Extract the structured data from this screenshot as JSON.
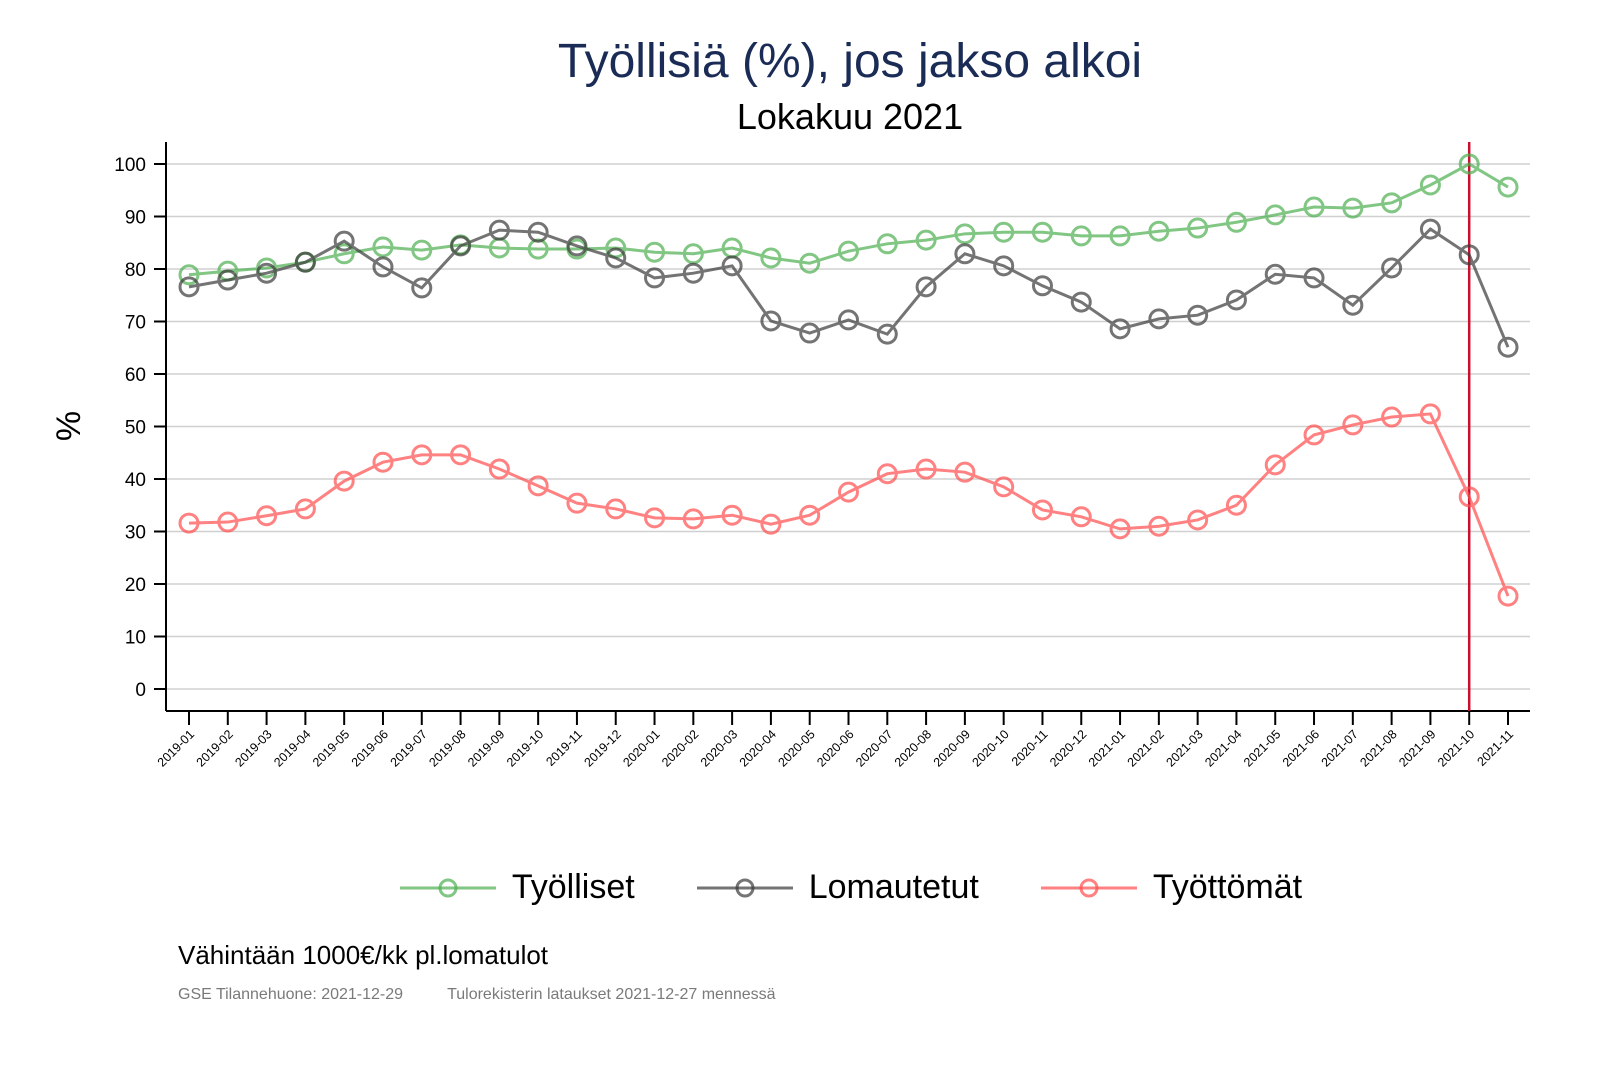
{
  "chart_data": {
    "type": "line",
    "title": "Työllisiä (%), jos jakso alkoi",
    "subtitle": "Lokakuu 2021",
    "xlabel": "",
    "ylabel": "%",
    "ylim": [
      -4,
      104
    ],
    "yticks": [
      0,
      10,
      20,
      30,
      40,
      50,
      60,
      70,
      80,
      90,
      100
    ],
    "grid": true,
    "legend_position": "bottom",
    "reference_line": {
      "x": "2021-10",
      "color": "#c8102e"
    },
    "categories": [
      "2019-01",
      "2019-02",
      "2019-03",
      "2019-04",
      "2019-05",
      "2019-06",
      "2019-07",
      "2019-08",
      "2019-09",
      "2019-10",
      "2019-11",
      "2019-12",
      "2020-01",
      "2020-02",
      "2020-03",
      "2020-04",
      "2020-05",
      "2020-06",
      "2020-07",
      "2020-08",
      "2020-09",
      "2020-10",
      "2020-11",
      "2020-12",
      "2021-01",
      "2021-02",
      "2021-03",
      "2021-04",
      "2021-05",
      "2021-06",
      "2021-07",
      "2021-08",
      "2021-09",
      "2021-10",
      "2021-11"
    ],
    "series": [
      {
        "name": "Työlliset",
        "color": "#4caf50",
        "values": [
          78.9,
          79.6,
          80.2,
          81.3,
          82.9,
          84.2,
          83.6,
          84.6,
          84.0,
          83.8,
          83.8,
          84.0,
          83.2,
          82.9,
          84.0,
          82.1,
          81.1,
          83.4,
          84.8,
          85.5,
          86.7,
          87.0,
          87.0,
          86.3,
          86.3,
          87.2,
          87.8,
          88.9,
          90.3,
          91.8,
          91.6,
          92.6,
          96.0,
          100.0,
          95.6
        ]
      },
      {
        "name": "Lomautetut",
        "color": "#3a3a3a",
        "values": [
          76.6,
          77.9,
          79.2,
          81.3,
          85.3,
          80.4,
          76.4,
          84.4,
          87.4,
          87.0,
          84.4,
          82.1,
          78.3,
          79.2,
          80.6,
          70.1,
          67.8,
          70.3,
          67.6,
          76.6,
          82.9,
          80.6,
          76.8,
          73.7,
          68.6,
          70.5,
          71.2,
          74.1,
          79.0,
          78.3,
          73.1,
          80.2,
          87.6,
          82.7,
          65.1
        ]
      },
      {
        "name": "Työttömät",
        "color": "#ff4d4d",
        "values": [
          31.6,
          31.8,
          33.0,
          34.3,
          39.6,
          43.2,
          44.6,
          44.6,
          41.9,
          38.7,
          35.4,
          34.3,
          32.6,
          32.4,
          33.1,
          31.4,
          33.1,
          37.5,
          41.0,
          41.9,
          41.3,
          38.5,
          34.1,
          32.8,
          30.5,
          31.0,
          32.2,
          35.0,
          42.7,
          48.4,
          50.3,
          51.8,
          52.4,
          36.6,
          17.7
        ]
      }
    ]
  },
  "footer": {
    "note": "Vähintään 1000€/kk pl.lomatulot",
    "source_left": "GSE Tilannehuone: 2021-12-29",
    "source_right": "Tulorekisterin lataukset 2021-12-27 mennessä"
  }
}
